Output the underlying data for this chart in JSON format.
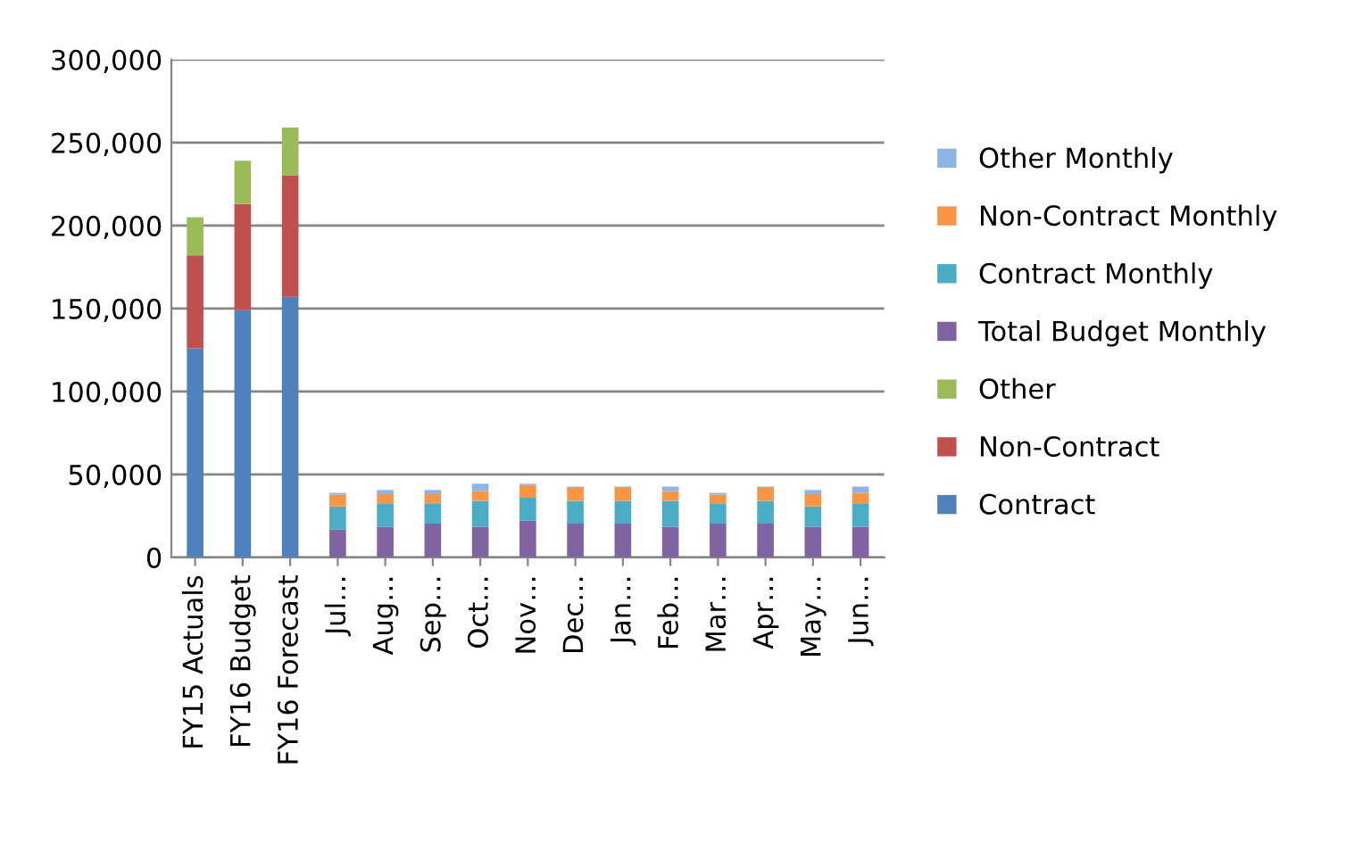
{
  "chart_data": {
    "type": "bar",
    "stacked": true,
    "categories": [
      "FY15 Actuals",
      "FY16 Budget",
      "FY16 Forecast",
      "Jul…",
      "Aug…",
      "Sep…",
      "Oct…",
      "Nov…",
      "Dec…",
      "Jan…",
      "Feb…",
      "Mar…",
      "Apr…",
      "May…",
      "Jun…"
    ],
    "series": [
      {
        "name": "Contract",
        "color": "#4f81bd",
        "values": [
          126000,
          149000,
          157000,
          null,
          null,
          null,
          null,
          null,
          null,
          null,
          null,
          null,
          null,
          null,
          null
        ]
      },
      {
        "name": "Non-Contract",
        "color": "#c0504d",
        "values": [
          56000,
          64000,
          73000,
          null,
          null,
          null,
          null,
          null,
          null,
          null,
          null,
          null,
          null,
          null,
          null
        ]
      },
      {
        "name": "Other",
        "color": "#9bbb59",
        "values": [
          23000,
          26000,
          29000,
          null,
          null,
          null,
          null,
          null,
          null,
          null,
          null,
          null,
          null,
          null,
          null
        ]
      },
      {
        "name": "Total Budget Monthly",
        "color": "#8064a2",
        "values": [
          null,
          null,
          null,
          16700,
          18500,
          20400,
          18500,
          22200,
          20400,
          20400,
          18500,
          20400,
          20400,
          18500,
          18500
        ]
      },
      {
        "name": "Contract Monthly",
        "color": "#4bacc6",
        "values": [
          null,
          null,
          null,
          14000,
          14100,
          12200,
          15600,
          13700,
          13700,
          13700,
          15600,
          12200,
          13700,
          12200,
          14100
        ]
      },
      {
        "name": "Non-Contract Monthly",
        "color": "#f79646",
        "values": [
          null,
          null,
          null,
          7100,
          5500,
          5500,
          5900,
          7800,
          7800,
          7800,
          5900,
          5200,
          7800,
          7400,
          6300
        ]
      },
      {
        "name": "Other Monthly",
        "color": "#8eb4e3",
        "values": [
          null,
          null,
          null,
          1100,
          2600,
          2600,
          4400,
          700,
          700,
          700,
          2600,
          1100,
          700,
          2600,
          3700
        ]
      }
    ],
    "ylim": [
      0,
      300000
    ],
    "yticks": [
      0,
      {
        "value": 50000,
        "label": "50,000"
      },
      {
        "value": 100000,
        "label": "100,000"
      },
      {
        "value": 150000,
        "label": "150,000"
      },
      {
        "value": 200000,
        "label": "200,000"
      },
      {
        "value": 250000,
        "label": "250,000"
      },
      {
        "value": 300000,
        "label": "300,000"
      }
    ],
    "grid": "y",
    "legend": "right"
  }
}
